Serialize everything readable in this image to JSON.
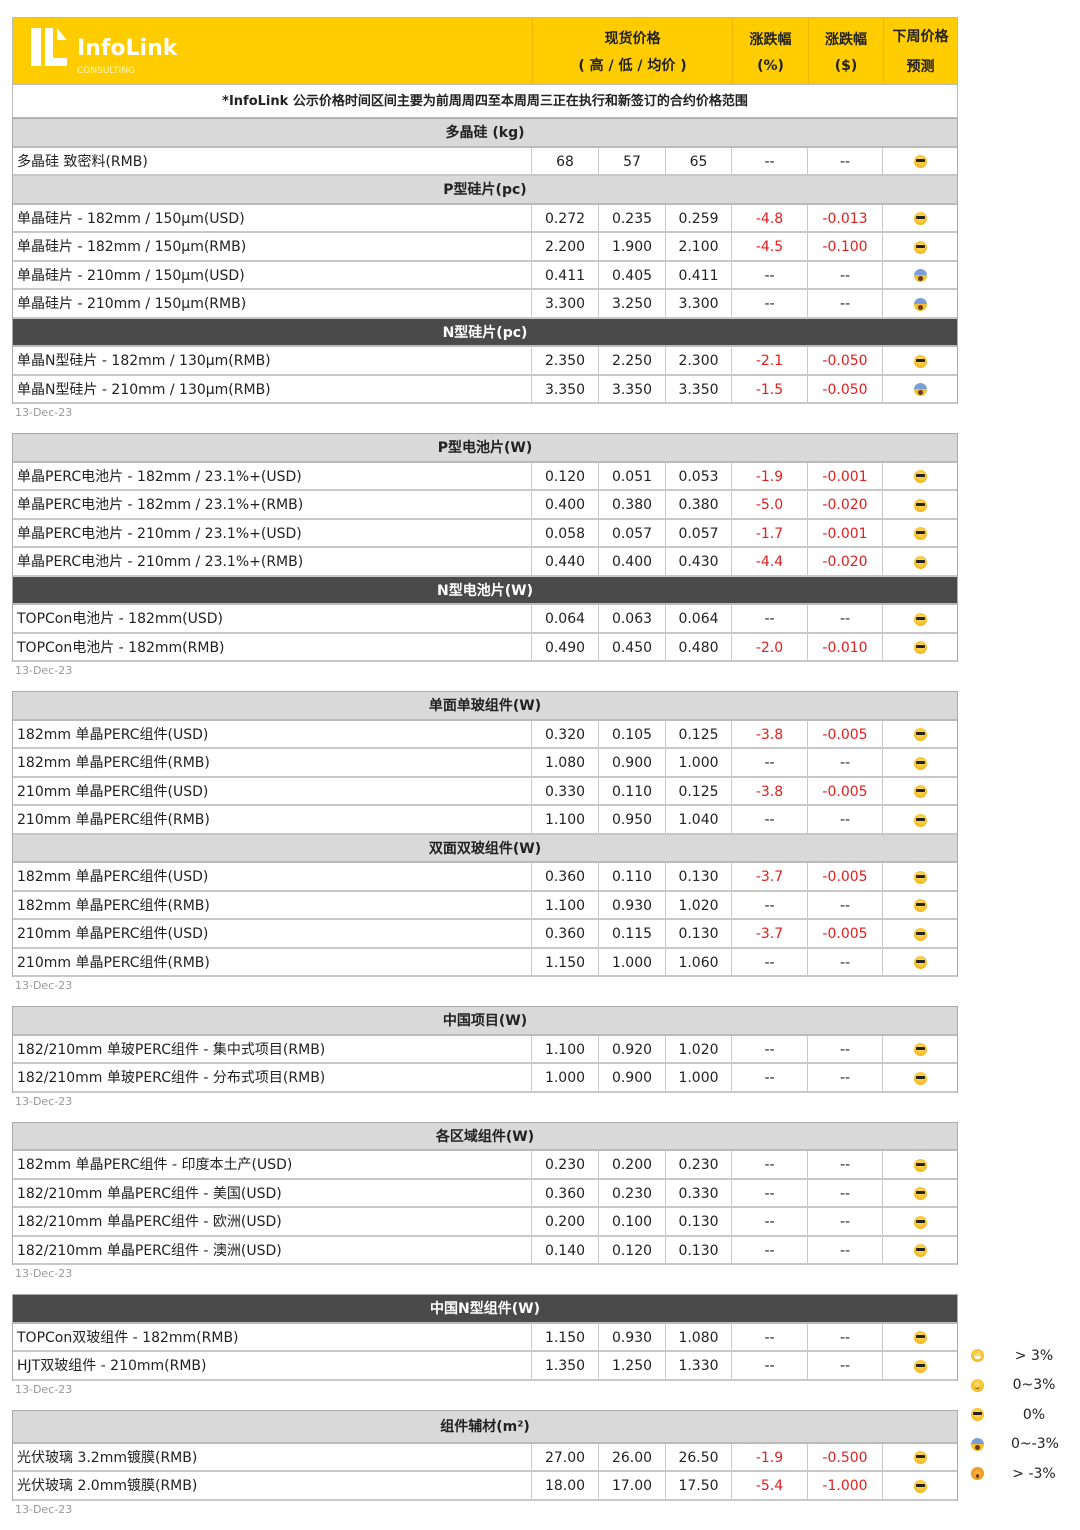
{
  "header": {
    "logo_text": "InfoLink",
    "logo_sub": "CONSULTING",
    "col_price": "现货价格",
    "col_price_sub": "( 高 / 低 / 均价 )",
    "col_pct": "涨跌幅",
    "col_pct_unit": "(%)",
    "col_usd": "涨跌幅",
    "col_usd_unit": "($)",
    "col_forecast": "下周价格",
    "col_forecast2": "预测",
    "brand_color": "#ffcc00"
  },
  "note": "*InfoLink 公示价格时间区间主要为前周周四至本周周三正在执行和新签订的合约价格范围",
  "blocks": [
    {
      "date": "13-Dec-23",
      "sections": [
        {
          "title": "多晶硅 (kg)",
          "dark": false,
          "rows": [
            [
              "多晶硅 致密料(RMB)",
              "68",
              "57",
              "65",
              "--",
              "--",
              "cool"
            ]
          ]
        },
        {
          "title": "P型硅片(pc)",
          "dark": false,
          "rows": [
            [
              "单晶硅片 - 182mm / 150μm(USD)",
              "0.272",
              "0.235",
              "0.259",
              "-4.8",
              "-0.013",
              "cool"
            ],
            [
              "单晶硅片 - 182mm / 150μm(RMB)",
              "2.200",
              "1.900",
              "2.100",
              "-4.5",
              "-0.100",
              "cool"
            ],
            [
              "单晶硅片 - 210mm / 150μm(USD)",
              "0.411",
              "0.405",
              "0.411",
              "--",
              "--",
              "scream"
            ],
            [
              "单晶硅片 - 210mm / 150μm(RMB)",
              "3.300",
              "3.250",
              "3.300",
              "--",
              "--",
              "scream"
            ]
          ]
        },
        {
          "title": "N型硅片(pc)",
          "dark": true,
          "rows": [
            [
              "单晶N型硅片 - 182mm / 130μm(RMB)",
              "2.350",
              "2.250",
              "2.300",
              "-2.1",
              "-0.050",
              "cool"
            ],
            [
              "单晶N型硅片 - 210mm / 130μm(RMB)",
              "3.350",
              "3.350",
              "3.350",
              "-1.5",
              "-0.050",
              "scream"
            ]
          ]
        }
      ]
    },
    {
      "date": "13-Dec-23",
      "sections": [
        {
          "title": "P型电池片(W)",
          "dark": false,
          "rows": [
            [
              "单晶PERC电池片 - 182mm / 23.1%+(USD)",
              "0.120",
              "0.051",
              "0.053",
              "-1.9",
              "-0.001",
              "cool"
            ],
            [
              "单晶PERC电池片 - 182mm / 23.1%+(RMB)",
              "0.400",
              "0.380",
              "0.380",
              "-5.0",
              "-0.020",
              "cool"
            ],
            [
              "单晶PERC电池片 - 210mm / 23.1%+(USD)",
              "0.058",
              "0.057",
              "0.057",
              "-1.7",
              "-0.001",
              "cool"
            ],
            [
              "单晶PERC电池片 - 210mm / 23.1%+(RMB)",
              "0.440",
              "0.400",
              "0.430",
              "-4.4",
              "-0.020",
              "cool"
            ]
          ]
        },
        {
          "title": "N型电池片(W)",
          "dark": true,
          "rows": [
            [
              "TOPCon电池片 - 182mm(USD)",
              "0.064",
              "0.063",
              "0.064",
              "--",
              "--",
              "cool"
            ],
            [
              "TOPCon电池片 - 182mm(RMB)",
              "0.490",
              "0.450",
              "0.480",
              "-2.0",
              "-0.010",
              "cool"
            ]
          ]
        }
      ]
    },
    {
      "date": "13-Dec-23",
      "sections": [
        {
          "title": "单面单玻组件(W)",
          "dark": false,
          "rows": [
            [
              "182mm 单晶PERC组件(USD)",
              "0.320",
              "0.105",
              "0.125",
              "-3.8",
              "-0.005",
              "cool"
            ],
            [
              "182mm 单晶PERC组件(RMB)",
              "1.080",
              "0.900",
              "1.000",
              "--",
              "--",
              "cool"
            ],
            [
              "210mm 单晶PERC组件(USD)",
              "0.330",
              "0.110",
              "0.125",
              "-3.8",
              "-0.005",
              "cool"
            ],
            [
              "210mm 单晶PERC组件(RMB)",
              "1.100",
              "0.950",
              "1.040",
              "--",
              "--",
              "cool"
            ]
          ]
        },
        {
          "title": "双面双玻组件(W)",
          "dark": false,
          "rows": [
            [
              "182mm 单晶PERC组件(USD)",
              "0.360",
              "0.110",
              "0.130",
              "-3.7",
              "-0.005",
              "cool"
            ],
            [
              "182mm 单晶PERC组件(RMB)",
              "1.100",
              "0.930",
              "1.020",
              "--",
              "--",
              "cool"
            ],
            [
              "210mm 单晶PERC组件(USD)",
              "0.360",
              "0.115",
              "0.130",
              "-3.7",
              "-0.005",
              "cool"
            ],
            [
              "210mm 单晶PERC组件(RMB)",
              "1.150",
              "1.000",
              "1.060",
              "--",
              "--",
              "cool"
            ]
          ]
        }
      ]
    },
    {
      "date": "13-Dec-23",
      "sections": [
        {
          "title": "中国项目(W)",
          "dark": false,
          "rows": [
            [
              "182/210mm 单玻PERC组件 - 集中式项目(RMB)",
              "1.100",
              "0.920",
              "1.020",
              "--",
              "--",
              "cool"
            ],
            [
              "182/210mm 单玻PERC组件 - 分布式项目(RMB)",
              "1.000",
              "0.900",
              "1.000",
              "--",
              "--",
              "cool"
            ]
          ]
        }
      ]
    },
    {
      "date": "13-Dec-23",
      "sections": [
        {
          "title": "各区域组件(W)",
          "dark": false,
          "rows": [
            [
              "182mm 单晶PERC组件 - 印度本土产(USD)",
              "0.230",
              "0.200",
              "0.230",
              "--",
              "--",
              "cool"
            ],
            [
              "182/210mm 单晶PERC组件 - 美国(USD)",
              "0.360",
              "0.230",
              "0.330",
              "--",
              "--",
              "cool"
            ],
            [
              "182/210mm 单晶PERC组件 - 欧洲(USD)",
              "0.200",
              "0.100",
              "0.130",
              "--",
              "--",
              "cool"
            ],
            [
              "182/210mm 单晶PERC组件 - 澳洲(USD)",
              "0.140",
              "0.120",
              "0.130",
              "--",
              "--",
              "cool"
            ]
          ]
        }
      ]
    },
    {
      "date": "13-Dec-23",
      "sections": [
        {
          "title": "中国N型组件(W)",
          "dark": true,
          "rows": [
            [
              "TOPCon双玻组件 - 182mm(RMB)",
              "1.150",
              "0.930",
              "1.080",
              "--",
              "--",
              "cool"
            ],
            [
              "HJT双玻组件 - 210mm(RMB)",
              "1.350",
              "1.250",
              "1.330",
              "--",
              "--",
              "cool"
            ]
          ]
        }
      ]
    },
    {
      "date": "13-Dec-23",
      "sections": [
        {
          "title": "组件辅材(m²)",
          "dark": false,
          "rows": [
            [
              "光伏玻璃 3.2mm镀膜(RMB)",
              "27.00",
              "26.00",
              "26.50",
              "-1.9",
              "-0.500",
              "cool"
            ],
            [
              "光伏玻璃 2.0mm镀膜(RMB)",
              "18.00",
              "17.00",
              "17.50",
              "-5.4",
              "-1.000",
              "cool"
            ]
          ]
        }
      ]
    }
  ],
  "legend": [
    {
      "icon": "grin",
      "label": "> 3%"
    },
    {
      "icon": "smile",
      "label": "0~3%"
    },
    {
      "icon": "cool",
      "label": "0%"
    },
    {
      "icon": "scream",
      "label": "0~-3%"
    },
    {
      "icon": "wow",
      "label": "> -3%"
    }
  ],
  "colors": {
    "negative": "#e02020",
    "section_bg": "#d9d9d9",
    "section_dark_bg": "#4a4a4a"
  }
}
